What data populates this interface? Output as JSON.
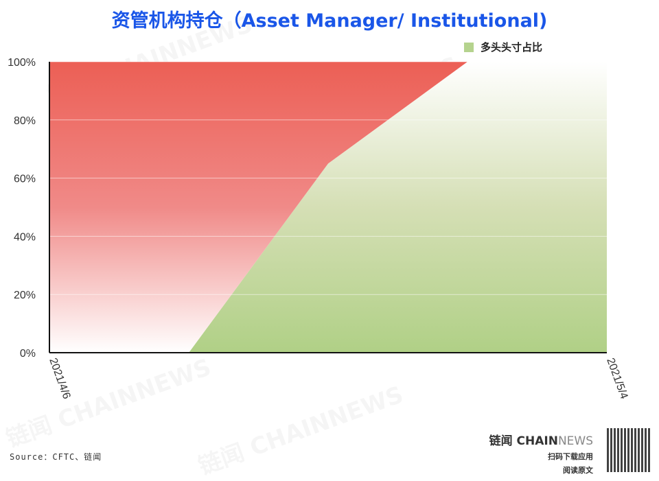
{
  "title": "资管机构持仓（Asset Manager/ Institutional)",
  "chart_data": {
    "type": "area",
    "stacked_percent": true,
    "title": "资管机构持仓（Asset Manager/ Institutional)",
    "x": [
      "2021/4/6",
      "2021/4/13",
      "2021/4/20",
      "2021/4/27",
      "2021/5/4"
    ],
    "x_tick_labels": [
      "2021/4/6",
      "2021/5/4"
    ],
    "series": [
      {
        "name": "多头头寸占比",
        "values": [
          0,
          0,
          65,
          100,
          100
        ],
        "color": "#b5d38e"
      },
      {
        "values": [
          100,
          100,
          35,
          0,
          0
        ],
        "color": "#ec5f55"
      }
    ],
    "y_ticks": [
      "0%",
      "20%",
      "40%",
      "60%",
      "80%",
      "100%"
    ],
    "ylim": [
      0,
      100
    ],
    "grid": true,
    "legend": "top-right"
  },
  "legend_label": "多头头寸占比",
  "source": "Source：CFTC、链闻",
  "brand": {
    "name_cn": "链闻",
    "name_a": "CHAIN",
    "name_b": "NEWS",
    "line1": "扫码下载应用",
    "line2": "阅读原文",
    "watermark": "链闻 CHAINNEWS"
  }
}
